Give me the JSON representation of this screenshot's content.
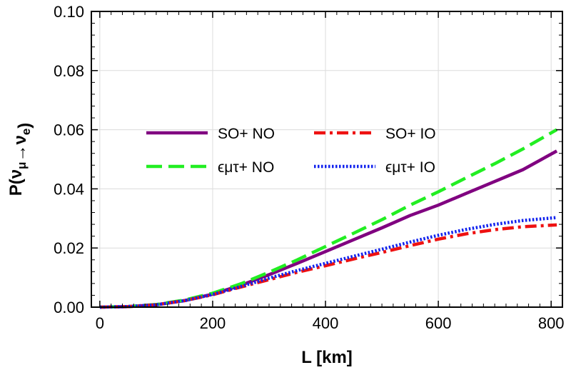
{
  "chart_data": {
    "type": "line",
    "xlabel": "L [km]",
    "ylabel": "P(νμ→νe)",
    "xlim": [
      -15,
      820
    ],
    "ylim": [
      0,
      0.1
    ],
    "x_ticks": [
      "0",
      "200",
      "400",
      "600",
      "800"
    ],
    "y_ticks": [
      "0.00",
      "0.02",
      "0.04",
      "0.06",
      "0.08",
      "0.10"
    ],
    "grid": true,
    "legend_position": "center-left, two columns",
    "x": [
      0,
      50,
      100,
      150,
      200,
      250,
      300,
      350,
      400,
      450,
      500,
      550,
      600,
      650,
      700,
      750,
      810
    ],
    "series": [
      {
        "name": "SO+ NO",
        "color": "#800080",
        "dash": "solid",
        "values": [
          0.0,
          0.0002,
          0.0008,
          0.0022,
          0.0044,
          0.0074,
          0.011,
          0.0148,
          0.0188,
          0.0228,
          0.0268,
          0.031,
          0.0345,
          0.0385,
          0.0425,
          0.0465,
          0.0528
        ]
      },
      {
        "name": "ϵμτ+ NO",
        "color": "#22ee22",
        "dash": "long-dash",
        "values": [
          0.0,
          0.0002,
          0.0009,
          0.0024,
          0.0047,
          0.0079,
          0.0118,
          0.016,
          0.0205,
          0.025,
          0.0296,
          0.0345,
          0.039,
          0.0438,
          0.0485,
          0.0535,
          0.06
        ]
      },
      {
        "name": "SO+ IO",
        "color": "#ee1111",
        "dash": "dash-dot",
        "values": [
          0.0,
          0.0002,
          0.0008,
          0.0022,
          0.0042,
          0.0068,
          0.0093,
          0.0118,
          0.014,
          0.0163,
          0.0185,
          0.0208,
          0.023,
          0.0248,
          0.0262,
          0.0272,
          0.0278
        ]
      },
      {
        "name": "ϵμτ+ IO",
        "color": "#1122ee",
        "dash": "dotted",
        "values": [
          0.0,
          0.0002,
          0.0008,
          0.0022,
          0.0043,
          0.007,
          0.0098,
          0.0124,
          0.0148,
          0.0172,
          0.0196,
          0.022,
          0.0243,
          0.0263,
          0.028,
          0.0293,
          0.0303
        ]
      }
    ]
  }
}
